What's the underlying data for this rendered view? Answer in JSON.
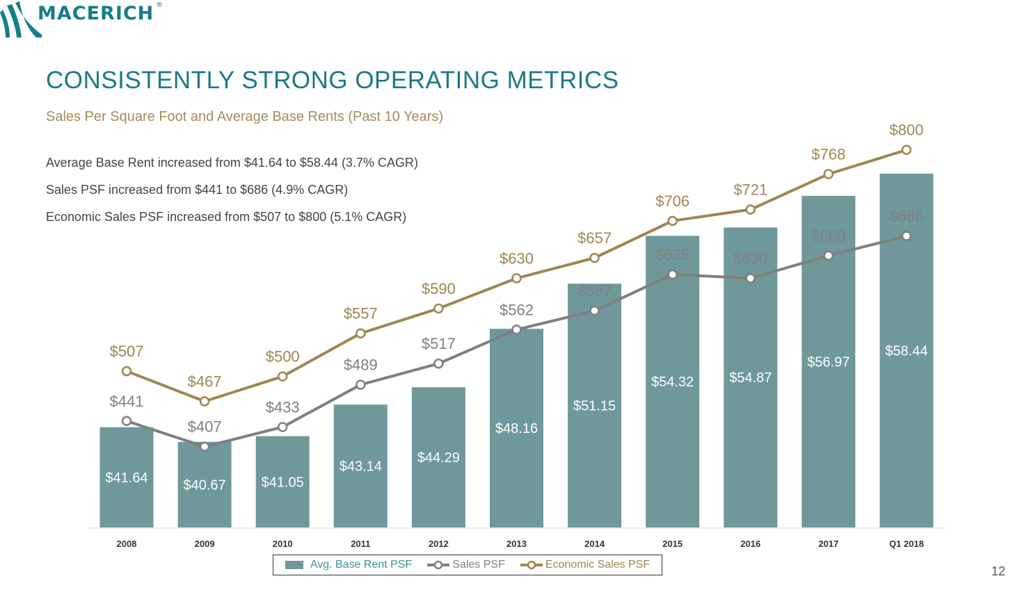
{
  "brand": {
    "name": "MACERICH",
    "registered": "®"
  },
  "title": "CONSISTENTLY STRONG OPERATING METRICS",
  "subtitle": "Sales Per Square Foot and Average Base Rents (Past 10 Years)",
  "bullets": [
    "Average Base Rent increased from $41.64 to $58.44 (3.7% CAGR)",
    "Sales PSF increased from $441 to $686 (4.9% CAGR)",
    "Economic Sales PSF increased from $507 to $800 (5.1% CAGR)"
  ],
  "page_number": "12",
  "colors": {
    "bar": "#6f989b",
    "sales": "#7f7f7f",
    "economic": "#a08550",
    "brand": "#147f87",
    "bar_legend_text": "#3d8fa0"
  },
  "chart_data": {
    "type": "bar+line",
    "categories": [
      "2008",
      "2009",
      "2010",
      "2011",
      "2012",
      "2013",
      "2014",
      "2015",
      "2016",
      "2017",
      "Q1 2018"
    ],
    "series": [
      {
        "name": "Avg. Base Rent PSF",
        "type": "bar",
        "axis": "secondary",
        "values": [
          41.64,
          40.67,
          41.05,
          43.14,
          44.29,
          48.16,
          51.15,
          54.32,
          54.87,
          56.97,
          58.44
        ],
        "labels": [
          "$41.64",
          "$40.67",
          "$41.05",
          "$43.14",
          "$44.29",
          "$48.16",
          "$51.15",
          "$54.32",
          "$54.87",
          "$56.97",
          "$58.44"
        ]
      },
      {
        "name": "Sales PSF",
        "type": "line",
        "axis": "primary",
        "values": [
          441,
          407,
          433,
          489,
          517,
          562,
          587,
          635,
          630,
          660,
          686
        ],
        "labels": [
          "$441",
          "$407",
          "$433",
          "$489",
          "$517",
          "$562",
          "$587",
          "$635",
          "$630",
          "$660",
          "$686"
        ]
      },
      {
        "name": "Economic Sales PSF",
        "type": "line",
        "axis": "primary",
        "values": [
          507,
          467,
          500,
          557,
          590,
          630,
          657,
          706,
          721,
          768,
          800
        ],
        "labels": [
          "$507",
          "$467",
          "$500",
          "$557",
          "$590",
          "$630",
          "$657",
          "$706",
          "$721",
          "$768",
          "$800"
        ]
      }
    ],
    "bar_axis_range": [
      35,
      60
    ],
    "line_axis_range": [
      300,
      831
    ],
    "legend": "bottom",
    "grid": false
  }
}
